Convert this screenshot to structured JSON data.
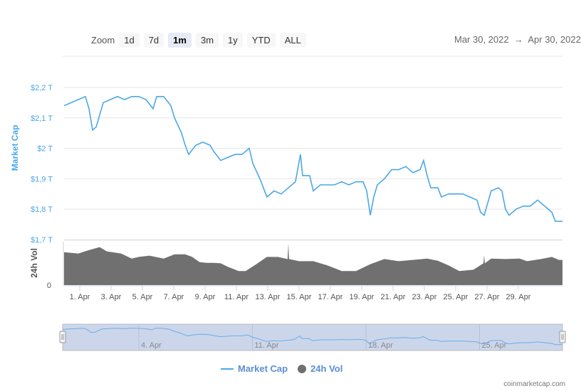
{
  "toolbar": {
    "zoom_label": "Zoom",
    "buttons": [
      "1d",
      "7d",
      "1m",
      "3m",
      "1y",
      "YTD",
      "ALL"
    ],
    "active": "1m",
    "range_from": "Mar 30, 2022",
    "range_arrow": "→",
    "range_to": "Apr 30, 2022"
  },
  "colors": {
    "market_cap": "#4aa8e8",
    "volume": "#707070",
    "navigator_fill": "#ccd6eb"
  },
  "chart_data": {
    "type": "line",
    "title": "",
    "x_unit": "days since Mar 31, 2022",
    "ylabel": "Market Cap",
    "ylabel2": "24h Vol",
    "ylim": [
      1.7,
      2.2
    ],
    "y_ticks": [
      "$2,2 T",
      "$2,1 T",
      "$2 T",
      "$1,9 T",
      "$1,8 T",
      "$1,7 T"
    ],
    "y2_ticks": [
      "0"
    ],
    "x_ticks": [
      "1. Apr",
      "3. Apr",
      "5. Apr",
      "7. Apr",
      "9. Apr",
      "11. Apr",
      "13. Apr",
      "15. Apr",
      "17. Apr",
      "19. Apr",
      "21. Apr",
      "23. Apr",
      "25. Apr",
      "27. Apr",
      "29. Apr"
    ],
    "navigator_ticks": [
      "4. Apr",
      "11. Apr",
      "18. Apr",
      "25. Apr"
    ],
    "series": [
      {
        "name": "Market Cap",
        "unit": "T USD",
        "points": [
          [
            0,
            2.14
          ],
          [
            0.45,
            2.15
          ],
          [
            0.91,
            2.16
          ],
          [
            1.36,
            2.17
          ],
          [
            1.59,
            2.13
          ],
          [
            1.82,
            2.06
          ],
          [
            2.05,
            2.07
          ],
          [
            2.5,
            2.15
          ],
          [
            2.95,
            2.16
          ],
          [
            3.41,
            2.17
          ],
          [
            3.86,
            2.16
          ],
          [
            4.32,
            2.17
          ],
          [
            4.77,
            2.17
          ],
          [
            5.23,
            2.16
          ],
          [
            5.68,
            2.13
          ],
          [
            5.91,
            2.17
          ],
          [
            6.36,
            2.17
          ],
          [
            6.82,
            2.14
          ],
          [
            7.05,
            2.1
          ],
          [
            7.5,
            2.05
          ],
          [
            7.73,
            2.01
          ],
          [
            7.95,
            1.98
          ],
          [
            8.41,
            2.01
          ],
          [
            8.86,
            2.02
          ],
          [
            9.32,
            2.01
          ],
          [
            9.55,
            1.99
          ],
          [
            10,
            1.96
          ],
          [
            10.45,
            1.97
          ],
          [
            10.91,
            1.98
          ],
          [
            11.36,
            1.98
          ],
          [
            11.82,
            2.0
          ],
          [
            12.05,
            1.95
          ],
          [
            12.5,
            1.9
          ],
          [
            12.95,
            1.84
          ],
          [
            13.41,
            1.86
          ],
          [
            13.86,
            1.85
          ],
          [
            14.32,
            1.87
          ],
          [
            14.77,
            1.89
          ],
          [
            15.09,
            1.98
          ],
          [
            15.23,
            1.91
          ],
          [
            15.68,
            1.91
          ],
          [
            15.91,
            1.86
          ],
          [
            16.36,
            1.88
          ],
          [
            16.82,
            1.88
          ],
          [
            17.27,
            1.88
          ],
          [
            17.73,
            1.89
          ],
          [
            18.18,
            1.88
          ],
          [
            18.64,
            1.89
          ],
          [
            19.09,
            1.89
          ],
          [
            19.32,
            1.86
          ],
          [
            19.55,
            1.78
          ],
          [
            19.77,
            1.84
          ],
          [
            20,
            1.88
          ],
          [
            20.45,
            1.9
          ],
          [
            20.91,
            1.93
          ],
          [
            21.36,
            1.93
          ],
          [
            21.82,
            1.94
          ],
          [
            22.27,
            1.92
          ],
          [
            22.73,
            1.93
          ],
          [
            22.95,
            1.96
          ],
          [
            23.18,
            1.91
          ],
          [
            23.41,
            1.87
          ],
          [
            23.86,
            1.87
          ],
          [
            24.09,
            1.84
          ],
          [
            24.55,
            1.85
          ],
          [
            25,
            1.85
          ],
          [
            25.45,
            1.85
          ],
          [
            25.91,
            1.84
          ],
          [
            26.36,
            1.83
          ],
          [
            26.59,
            1.79
          ],
          [
            26.82,
            1.78
          ],
          [
            27.27,
            1.86
          ],
          [
            27.73,
            1.87
          ],
          [
            27.95,
            1.86
          ],
          [
            28.18,
            1.8
          ],
          [
            28.41,
            1.78
          ],
          [
            28.86,
            1.8
          ],
          [
            29.32,
            1.81
          ],
          [
            29.77,
            1.81
          ],
          [
            30.23,
            1.83
          ],
          [
            30.68,
            1.81
          ],
          [
            31.14,
            1.79
          ],
          [
            31.36,
            1.76
          ],
          [
            31.82,
            1.76
          ]
        ]
      },
      {
        "name": "24h Vol",
        "unit": "relative",
        "points": [
          [
            0,
            0.77
          ],
          [
            0.91,
            0.74
          ],
          [
            1.59,
            0.82
          ],
          [
            2.27,
            0.89
          ],
          [
            2.73,
            0.79
          ],
          [
            3.64,
            0.74
          ],
          [
            4.32,
            0.62
          ],
          [
            4.77,
            0.66
          ],
          [
            5.45,
            0.69
          ],
          [
            6.36,
            0.62
          ],
          [
            7.05,
            0.72
          ],
          [
            7.73,
            0.72
          ],
          [
            8.18,
            0.66
          ],
          [
            8.64,
            0.54
          ],
          [
            9.09,
            0.52
          ],
          [
            9.55,
            0.52
          ],
          [
            10,
            0.51
          ],
          [
            10.45,
            0.43
          ],
          [
            11.14,
            0.33
          ],
          [
            11.59,
            0.33
          ],
          [
            12.27,
            0.49
          ],
          [
            12.95,
            0.66
          ],
          [
            13.64,
            0.66
          ],
          [
            14.27,
            0.61
          ],
          [
            14.32,
            0.98
          ],
          [
            14.36,
            0.61
          ],
          [
            15,
            0.56
          ],
          [
            15.91,
            0.56
          ],
          [
            16.82,
            0.46
          ],
          [
            17.73,
            0.33
          ],
          [
            18.64,
            0.33
          ],
          [
            19.55,
            0.49
          ],
          [
            20.45,
            0.61
          ],
          [
            21.36,
            0.56
          ],
          [
            22.27,
            0.59
          ],
          [
            23.18,
            0.62
          ],
          [
            23.86,
            0.57
          ],
          [
            24.55,
            0.46
          ],
          [
            25.23,
            0.33
          ],
          [
            26.14,
            0.36
          ],
          [
            26.77,
            0.51
          ],
          [
            26.82,
            0.7
          ],
          [
            26.86,
            0.51
          ],
          [
            27.27,
            0.62
          ],
          [
            28.18,
            0.61
          ],
          [
            29.09,
            0.62
          ],
          [
            29.55,
            0.56
          ],
          [
            30.45,
            0.61
          ],
          [
            31.14,
            0.66
          ],
          [
            31.59,
            0.59
          ],
          [
            31.82,
            0.59
          ]
        ]
      }
    ],
    "legend": [
      "Market Cap",
      "24h Vol"
    ],
    "legend_position": "bottom-center",
    "grid": true
  },
  "credit": "coinmarketcap.com"
}
